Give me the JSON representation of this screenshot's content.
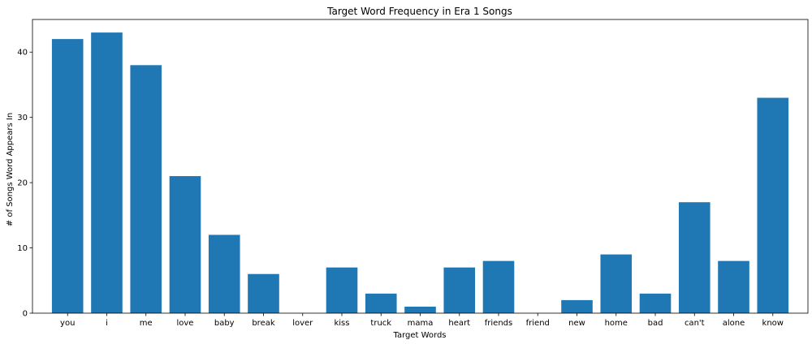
{
  "chart_data": {
    "type": "bar",
    "title": "Target Word Frequency in Era 1 Songs",
    "xlabel": "Target Words",
    "ylabel": "# of Songs Word Appears In",
    "categories": [
      "you",
      "i",
      "me",
      "love",
      "baby",
      "break",
      "lover",
      "kiss",
      "truck",
      "mama",
      "heart",
      "friends",
      "friend",
      "new",
      "home",
      "bad",
      "can't",
      "alone",
      "know"
    ],
    "values": [
      42,
      43,
      38,
      21,
      12,
      6,
      0,
      7,
      3,
      1,
      7,
      8,
      0,
      2,
      9,
      3,
      17,
      8,
      33
    ],
    "ylim": [
      0,
      45
    ],
    "yticks": [
      0,
      10,
      20,
      30,
      40
    ],
    "grid": false,
    "bar_color": "#1f77b4"
  }
}
